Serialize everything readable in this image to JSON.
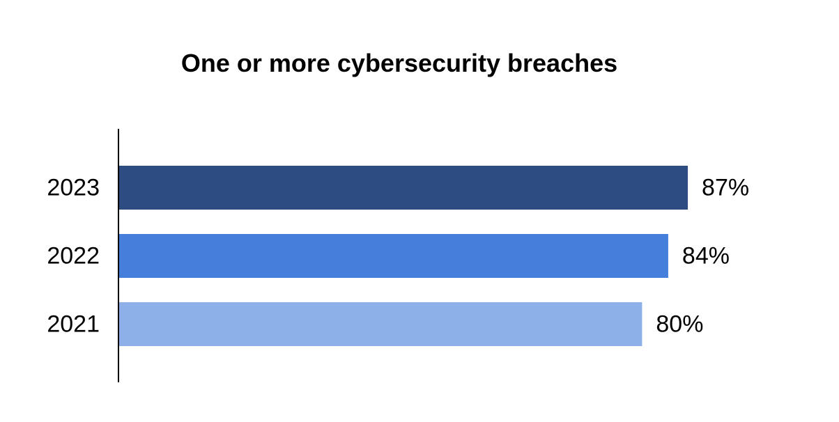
{
  "chart_data": {
    "type": "bar",
    "orientation": "horizontal",
    "title": "One or more cybersecurity breaches",
    "categories": [
      "2023",
      "2022",
      "2021"
    ],
    "values": [
      87,
      84,
      80
    ],
    "value_labels": [
      "87%",
      "84%",
      "80%"
    ],
    "unit": "%",
    "xlim": [
      0,
      100
    ],
    "grid": false,
    "legend": "none",
    "colors": [
      "#2d4d82",
      "#457fdb",
      "#8db0e8"
    ]
  }
}
